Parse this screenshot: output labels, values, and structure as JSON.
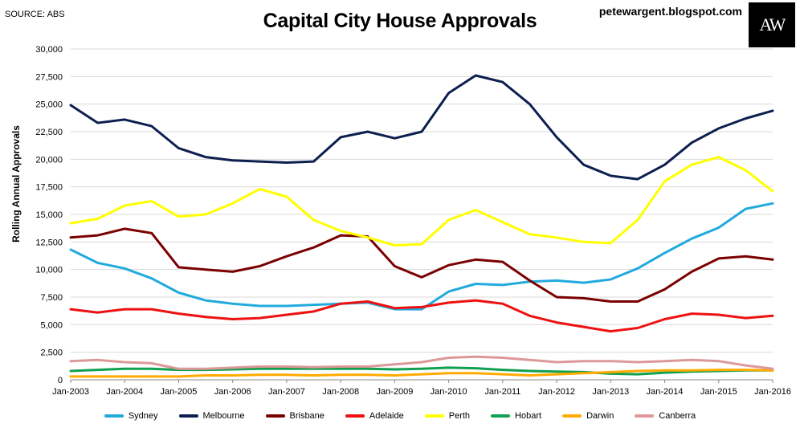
{
  "header": {
    "source": "SOURCE: ABS",
    "title": "Capital City House Approvals",
    "site": "petewargent.blogspot.com",
    "logo": "AW"
  },
  "chart_data": {
    "type": "line",
    "title": "Capital City House Approvals",
    "xlabel": "",
    "ylabel": "Rolling Annual Approvals",
    "ylim": [
      0,
      30000
    ],
    "yticks": [
      "0",
      "2,500",
      "5,000",
      "7,500",
      "10,000",
      "12,500",
      "15,000",
      "17,500",
      "20,000",
      "22,500",
      "25,000",
      "27,500",
      "30,000"
    ],
    "xlim": [
      2003,
      2016
    ],
    "xticks": [
      "Jan-2003",
      "Jan-2004",
      "Jan-2005",
      "Jan-2006",
      "Jan-2007",
      "Jan-2008",
      "Jan-2009",
      "Jan-2010",
      "Jan-2011",
      "Jan-2012",
      "Jan-2013",
      "Jan-2014",
      "Jan-2015",
      "Jan-2016"
    ],
    "grid": true,
    "legend_position": "bottom",
    "x": [
      2003,
      2003.5,
      2004,
      2004.5,
      2005,
      2005.5,
      2006,
      2006.5,
      2007,
      2007.5,
      2008,
      2008.5,
      2009,
      2009.5,
      2010,
      2010.5,
      2011,
      2011.5,
      2012,
      2012.5,
      2013,
      2013.5,
      2014,
      2014.5,
      2015,
      2015.5,
      2016
    ],
    "series": [
      {
        "name": "Sydney",
        "color": "#22aadd",
        "values": [
          11800,
          10600,
          10100,
          9200,
          7900,
          7200,
          6900,
          6700,
          6700,
          6800,
          6900,
          7000,
          6400,
          6400,
          8000,
          8700,
          8600,
          8900,
          9000,
          8800,
          9100,
          10100,
          11500,
          12800,
          13800,
          15500,
          16000
        ]
      },
      {
        "name": "Melbourne",
        "color": "#0d1f4f",
        "values": [
          24900,
          23300,
          23600,
          23000,
          21000,
          20200,
          19900,
          19800,
          19700,
          19800,
          22000,
          22500,
          21900,
          22500,
          26000,
          27600,
          27000,
          25000,
          22000,
          19500,
          18500,
          18200,
          19500,
          21500,
          22800,
          23700,
          24400
        ]
      },
      {
        "name": "Brisbane",
        "color": "#7a0000",
        "values": [
          12900,
          13100,
          13700,
          13300,
          10200,
          10000,
          9800,
          10300,
          11200,
          12000,
          13100,
          13000,
          10300,
          9300,
          10400,
          10900,
          10700,
          9000,
          7500,
          7400,
          7100,
          7100,
          8200,
          9800,
          11000,
          11200,
          10900
        ]
      },
      {
        "name": "Adelaide",
        "color": "#ee1111",
        "values": [
          6400,
          6100,
          6400,
          6400,
          6000,
          5700,
          5500,
          5600,
          5900,
          6200,
          6900,
          7100,
          6500,
          6600,
          7000,
          7200,
          6900,
          5800,
          5200,
          4800,
          4400,
          4700,
          5500,
          6000,
          5900,
          5600,
          5800
        ]
      },
      {
        "name": "Perth",
        "color": "#ffff00",
        "values": [
          14200,
          14600,
          15800,
          16200,
          14800,
          15000,
          16000,
          17300,
          16600,
          14500,
          13500,
          12900,
          12200,
          12300,
          14500,
          15400,
          14300,
          13200,
          12900,
          12500,
          12400,
          14500,
          18000,
          19500,
          20200,
          19000,
          17100
        ]
      },
      {
        "name": "Hobart",
        "color": "#11a050",
        "values": [
          800,
          900,
          1000,
          1000,
          900,
          900,
          950,
          1000,
          1000,
          1000,
          1000,
          1000,
          950,
          1000,
          1100,
          1050,
          900,
          800,
          750,
          700,
          550,
          500,
          650,
          750,
          800,
          850,
          850
        ]
      },
      {
        "name": "Darwin",
        "color": "#ffaa00",
        "values": [
          300,
          300,
          300,
          300,
          300,
          400,
          400,
          450,
          450,
          400,
          450,
          450,
          400,
          500,
          600,
          600,
          500,
          400,
          500,
          600,
          700,
          800,
          850,
          850,
          900,
          900,
          850
        ]
      },
      {
        "name": "Canberra",
        "color": "#dd9999",
        "values": [
          1700,
          1800,
          1600,
          1500,
          1000,
          1000,
          1100,
          1200,
          1200,
          1150,
          1200,
          1200,
          1400,
          1600,
          2000,
          2100,
          2000,
          1800,
          1600,
          1700,
          1700,
          1600,
          1700,
          1800,
          1700,
          1300,
          1000
        ]
      }
    ]
  }
}
